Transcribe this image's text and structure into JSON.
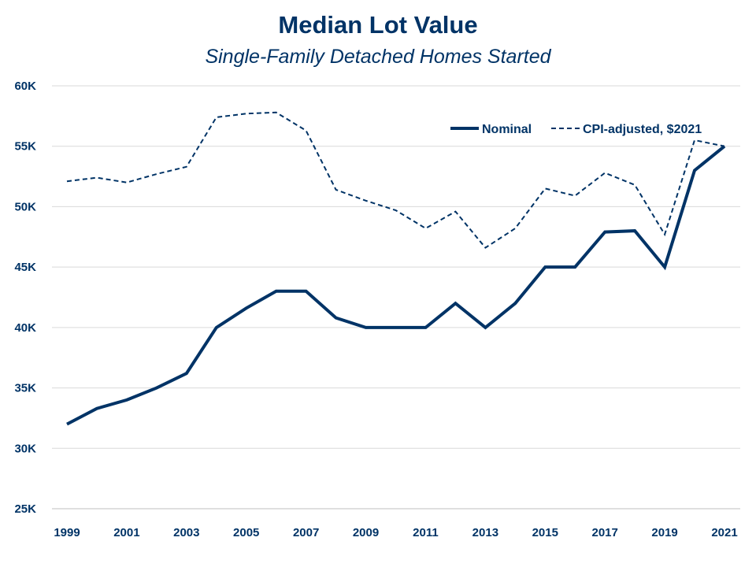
{
  "chart_data": {
    "type": "line",
    "title": "Median Lot Value",
    "subtitle": "Single-Family Detached Homes Started",
    "xlabel": "",
    "ylabel": "",
    "x": [
      1999,
      2000,
      2001,
      2002,
      2003,
      2004,
      2005,
      2006,
      2007,
      2008,
      2009,
      2010,
      2011,
      2012,
      2013,
      2014,
      2015,
      2016,
      2017,
      2018,
      2019,
      2020,
      2021
    ],
    "x_tick_labels": [
      "1999",
      "2001",
      "2003",
      "2005",
      "2007",
      "2009",
      "2011",
      "2013",
      "2015",
      "2017",
      "2019",
      "2021"
    ],
    "ylim": [
      25000,
      60000
    ],
    "y_ticks": [
      25000,
      30000,
      35000,
      40000,
      45000,
      50000,
      55000,
      60000
    ],
    "y_tick_labels": [
      "25K",
      "30K",
      "35K",
      "40K",
      "45K",
      "50K",
      "55K",
      "60K"
    ],
    "grid": true,
    "legend_position": "top-right",
    "series": [
      {
        "name": "Nominal",
        "style": "solid",
        "color": "#003366",
        "values": [
          32000,
          33300,
          34000,
          35000,
          36200,
          40000,
          41600,
          43000,
          43000,
          40800,
          40000,
          40000,
          40000,
          42000,
          40000,
          42000,
          45000,
          45000,
          47900,
          48000,
          45000,
          53000,
          55000
        ]
      },
      {
        "name": "CPI-adjusted, $2021",
        "style": "dashed",
        "color": "#003366",
        "values": [
          52100,
          52400,
          52000,
          52700,
          53300,
          57400,
          57700,
          57800,
          56300,
          51400,
          50500,
          49700,
          48200,
          49600,
          46600,
          48200,
          51500,
          50900,
          52800,
          51800,
          47700,
          55500,
          55000
        ]
      }
    ]
  }
}
